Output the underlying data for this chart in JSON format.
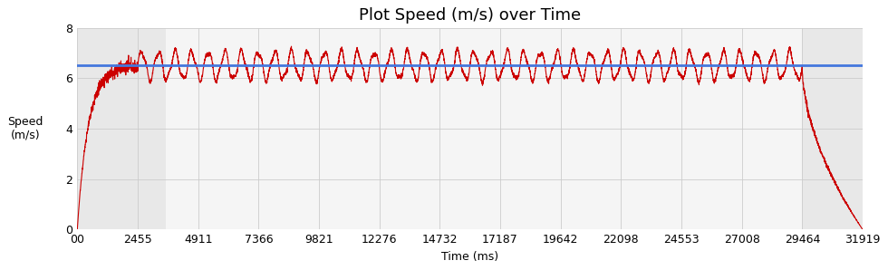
{
  "title": "Plot Speed (m/s) over Time",
  "xlabel": "Time (ms)",
  "ylabel": "Speed\n(m/s)",
  "ylim": [
    0,
    8
  ],
  "yticks": [
    0,
    2,
    4,
    6,
    8
  ],
  "xlim": [
    0,
    31919
  ],
  "xticks": [
    0,
    2455,
    4911,
    7366,
    9821,
    12276,
    14732,
    17187,
    19642,
    22098,
    24553,
    27008,
    29464,
    31919
  ],
  "xticklabels": [
    "00",
    "2455",
    "4911",
    "7366",
    "9821",
    "12276",
    "14732",
    "17187",
    "19642",
    "22098",
    "24553",
    "27008",
    "29464",
    "31919"
  ],
  "avg_speed": 6.5,
  "avg_line_color": "#4477dd",
  "speed_line_color": "#cc0000",
  "bg_color_gray": "#c8c8c8",
  "bg_color_light": "#e8e8e8",
  "bg_color_white": "#f5f5f5",
  "gray_region1_start": 0,
  "gray_region1_end": 3600,
  "gray_region2_start": 29464,
  "gray_region2_end": 31919,
  "accel_end": 2455,
  "decel_start": 29464,
  "total_time": 31919,
  "title_fontsize": 13,
  "axis_fontsize": 9,
  "label_fontsize": 9
}
